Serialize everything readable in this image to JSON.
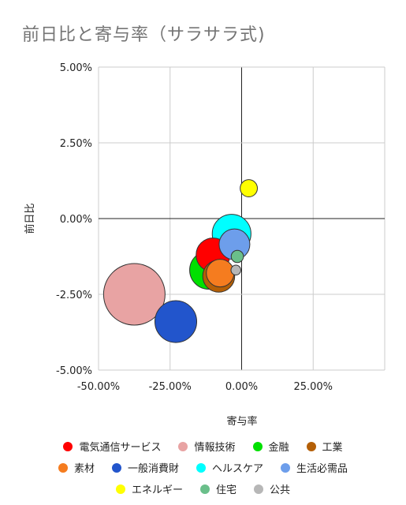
{
  "chart_data": {
    "type": "bubble",
    "title": "前日比と寄与率（サラサラ式)",
    "xlabel": "寄与率",
    "ylabel": "前日比",
    "xlim": [
      -50,
      50
    ],
    "ylim": [
      -5,
      5
    ],
    "x_ticks": [
      -50,
      -25,
      0,
      25
    ],
    "x_tick_labels": [
      "-50.00%",
      "-25.00%",
      "0.00%",
      "25.00%"
    ],
    "y_ticks": [
      5,
      2.5,
      0,
      -2.5,
      -5
    ],
    "y_tick_labels": [
      "5.00%",
      "2.50%",
      "0.00%",
      "-2.50%",
      "-5.00%"
    ],
    "grid": true,
    "legend_position": "bottom",
    "series": [
      {
        "name": "電気通信サービス",
        "color": "#ff0000",
        "x": -10,
        "y": -1.2,
        "size": 0.55
      },
      {
        "name": "情報技術",
        "color": "#e8a3a3",
        "x": -37.5,
        "y": -2.5,
        "size": 1.0
      },
      {
        "name": "金融",
        "color": "#00e000",
        "x": -11.5,
        "y": -1.7,
        "size": 0.62
      },
      {
        "name": "工業",
        "color": "#b45f06",
        "x": -8,
        "y": -1.9,
        "size": 0.52
      },
      {
        "name": "素材",
        "color": "#f57c1f",
        "x": -7.5,
        "y": -1.8,
        "size": 0.45
      },
      {
        "name": "一般消費財",
        "color": "#2255cc",
        "x": -23,
        "y": -3.4,
        "size": 0.68
      },
      {
        "name": "ヘルスケア",
        "color": "#00ffff",
        "x": -3.5,
        "y": -0.5,
        "size": 0.63
      },
      {
        "name": "生活必需品",
        "color": "#6d9eeb",
        "x": -2.5,
        "y": -0.85,
        "size": 0.5
      },
      {
        "name": "エネルギー",
        "color": "#ffff00",
        "x": 2.5,
        "y": 1.0,
        "size": 0.28
      },
      {
        "name": "住宅",
        "color": "#6abf8a",
        "x": -1.5,
        "y": -1.25,
        "size": 0.2
      },
      {
        "name": "公共",
        "color": "#b7b7b7",
        "x": -2,
        "y": -1.7,
        "size": 0.16
      }
    ]
  },
  "legend_rows": [
    [
      0,
      1,
      2,
      3
    ],
    [
      4,
      5,
      6,
      7
    ],
    [
      8,
      9,
      10
    ]
  ]
}
